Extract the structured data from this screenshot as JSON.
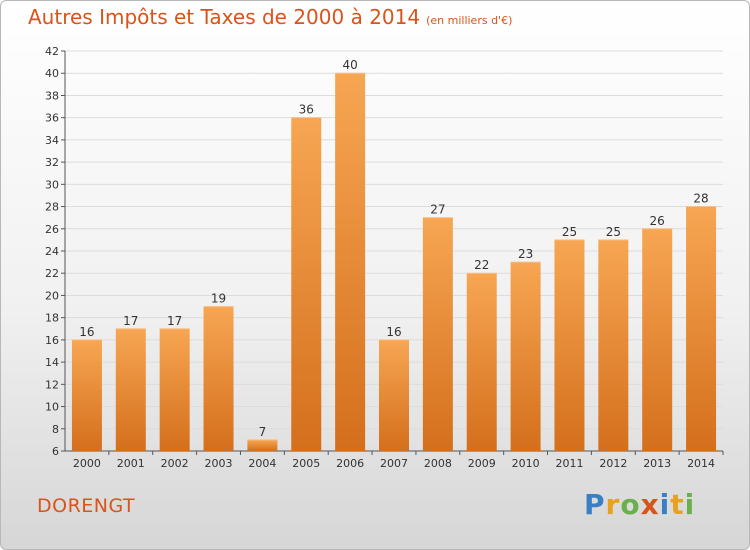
{
  "header": {
    "title": "Autres Impôts et Taxes de 2000 à 2014",
    "unit": "(en milliers d'€)"
  },
  "footer": {
    "commune": "DORENGT",
    "logo_letters": [
      "P",
      "r",
      "o",
      "x",
      "i",
      "t",
      "i"
    ],
    "logo_colors": [
      "#3a7fc4",
      "#e8a020",
      "#6ab04c",
      "#d9541a",
      "#3a7fc4",
      "#e8a020",
      "#6ab04c"
    ]
  },
  "colors": {
    "bar_light": "#f7a653",
    "bar_dark": "#d46f1c",
    "accent": "#d9541a"
  },
  "chart_data": {
    "type": "bar",
    "categories": [
      "2000",
      "2001",
      "2002",
      "2003",
      "2004",
      "2005",
      "2006",
      "2007",
      "2008",
      "2009",
      "2010",
      "2011",
      "2012",
      "2013",
      "2014"
    ],
    "values": [
      16,
      17,
      17,
      19,
      7,
      36,
      40,
      16,
      27,
      22,
      23,
      25,
      25,
      26,
      28
    ],
    "ylim": [
      6,
      42
    ],
    "yticks": [
      6,
      8,
      10,
      12,
      14,
      16,
      18,
      20,
      22,
      24,
      26,
      28,
      30,
      32,
      34,
      36,
      38,
      40,
      42
    ],
    "grid": true,
    "legend": "none"
  }
}
